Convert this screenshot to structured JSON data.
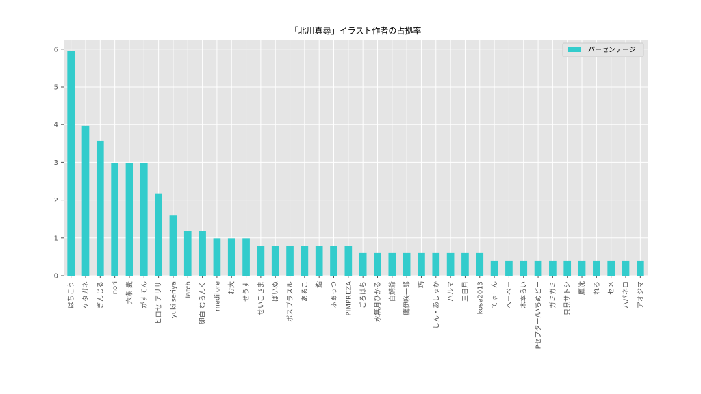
{
  "chart_data": {
    "type": "bar",
    "title": "「北川真尋」イラスト作者の占拠率",
    "xlabel": "",
    "ylabel": "",
    "ylim": [
      0,
      6.25
    ],
    "yticks": [
      0,
      1,
      2,
      3,
      4,
      5,
      6
    ],
    "grid": true,
    "legend_position": "top-right",
    "bar_color": "#33cccc",
    "background_color": "#e5e5e5",
    "categories": [
      "はちこう",
      "ケタガネ",
      "ぎんじる",
      "nori",
      "六条 麦",
      "がすてん",
      "ヒロセ アリサ",
      "yuki seriya",
      "latch",
      "卵白 むらんく",
      "medilore",
      "お大",
      "せうす",
      "せいこさま",
      "ばいぬ",
      "ボスプラスル",
      "あるこ",
      "鮨",
      "ふぁっつ",
      "PIMPREZA",
      "ごろはち",
      "水無月ひかる",
      "白鯖爺",
      "鷹伊咲一郎",
      "巧",
      "しん・あしゅか",
      "ハルマ",
      "三日月",
      "kose2013",
      "てゅーん",
      "へーべー",
      "木本らい",
      "Pセプター/いちめどー",
      "ガミガミ",
      "只見サトシ",
      "鷹沈",
      "れろ",
      "セメ",
      "ハバネロ",
      "アオジマ"
    ],
    "series": [
      {
        "name": "パーセンテージ",
        "values": [
          5.95,
          3.97,
          3.57,
          2.98,
          2.98,
          2.98,
          2.18,
          1.59,
          1.19,
          1.19,
          0.99,
          0.99,
          0.99,
          0.79,
          0.79,
          0.79,
          0.79,
          0.79,
          0.79,
          0.79,
          0.6,
          0.6,
          0.6,
          0.6,
          0.6,
          0.6,
          0.6,
          0.6,
          0.6,
          0.4,
          0.4,
          0.4,
          0.4,
          0.4,
          0.4,
          0.4,
          0.4,
          0.4,
          0.4,
          0.4
        ]
      }
    ]
  }
}
